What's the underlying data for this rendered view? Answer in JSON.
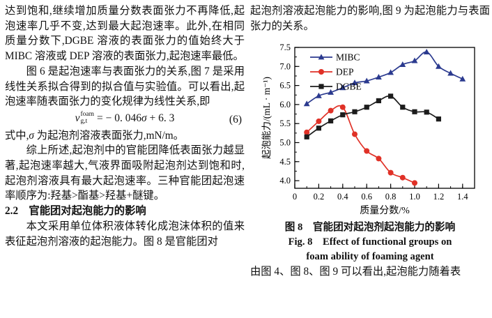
{
  "left": {
    "p1": "达到饱和,继续增加质量分数表面张力不再降低,起泡速率几乎不变,达到最大起泡速率。此外,在相同质量分数下,DGBE 溶液的表面张力的值始终大于 MIBC 溶液或 DEP 溶液的表面张力,起泡速率最低。",
    "p2": "图 6 是起泡速率与表面张力的关系,图 7 是采用线性关系拟合得到的拟合值与实验值。可以看出,起泡速率随表面张力的变化规律为线性关系,即",
    "eq": {
      "var": "v",
      "sup": "foam",
      "sub": "g,t",
      "pre": "= − 0. 046",
      "sigma": "σ",
      "post": " + 6. 3",
      "num": "(6)"
    },
    "p3a": "式中,",
    "p3sigma": "σ",
    "p3b": " 为起泡剂溶液表面张力,mN/m。",
    "p4": "综上所述,起泡剂中的官能团降低表面张力越显著,起泡速率越大,气液界面吸附起泡剂达到饱和时,起泡剂溶液具有最大起泡速率。三种官能团起泡速率顺序为:羟基>酯基>羟基+醚键。",
    "heading": "2.2　官能团对起泡能力的影响",
    "p5": "本文采用单位体积液体转化成泡沫体积的值来表征起泡剂溶液的起泡能力。图 8 是官能团对"
  },
  "right": {
    "p1": "起泡剂溶液起泡能力的影响,图 9 为起泡能力与表面张力的关系。",
    "caption_cn": "图 8　官能团对起泡剂起泡能力的影响",
    "caption_en1": "Fig. 8　Effect of functional groups on",
    "caption_en2": "foam ability of foaming agent",
    "p2": "由图 4、图 8、图 9 可以看出,起泡能力随着表"
  },
  "chart_data": {
    "type": "line",
    "title": "",
    "xlabel": "质量分数/%",
    "ylabel": "起泡能力/(mL · m⁻¹)",
    "xlim": [
      0,
      1.5
    ],
    "ylim": [
      3.8,
      7.5
    ],
    "xticks": [
      0,
      0.2,
      0.4,
      0.6,
      0.8,
      1.0,
      1.2,
      1.4
    ],
    "yticks": [
      4.0,
      4.5,
      5.0,
      5.5,
      6.0,
      6.5,
      7.0,
      7.5
    ],
    "x_minor_step": 0.1,
    "y_minor_step": 0.25,
    "grid": false,
    "legend_position": "top-left",
    "axis_color": "#000000",
    "series": [
      {
        "name": "MIBC",
        "color": "#2b3a8f",
        "marker": "triangle",
        "x": [
          0.1,
          0.2,
          0.3,
          0.4,
          0.5,
          0.6,
          0.7,
          0.8,
          0.9,
          1.0,
          1.1,
          1.2,
          1.3,
          1.4
        ],
        "y": [
          6.02,
          6.23,
          6.32,
          6.44,
          6.57,
          6.62,
          6.72,
          6.84,
          7.05,
          7.15,
          7.38,
          7.0,
          6.82,
          6.67
        ]
      },
      {
        "name": "DEP",
        "color": "#e03127",
        "marker": "circle",
        "x": [
          0.1,
          0.2,
          0.3,
          0.4,
          0.5,
          0.6,
          0.7,
          0.8,
          0.9,
          1.0
        ],
        "y": [
          5.27,
          5.56,
          5.84,
          5.93,
          5.22,
          4.78,
          4.58,
          4.21,
          4.08,
          3.94
        ]
      },
      {
        "name": "DGBE",
        "color": "#1c1c1c",
        "marker": "square",
        "x": [
          0.1,
          0.2,
          0.3,
          0.4,
          0.5,
          0.6,
          0.7,
          0.8,
          0.9,
          1.0,
          1.1,
          1.2
        ],
        "y": [
          5.15,
          5.38,
          5.57,
          5.73,
          5.81,
          5.93,
          6.1,
          6.22,
          5.93,
          5.81,
          5.8,
          5.62
        ]
      }
    ]
  }
}
